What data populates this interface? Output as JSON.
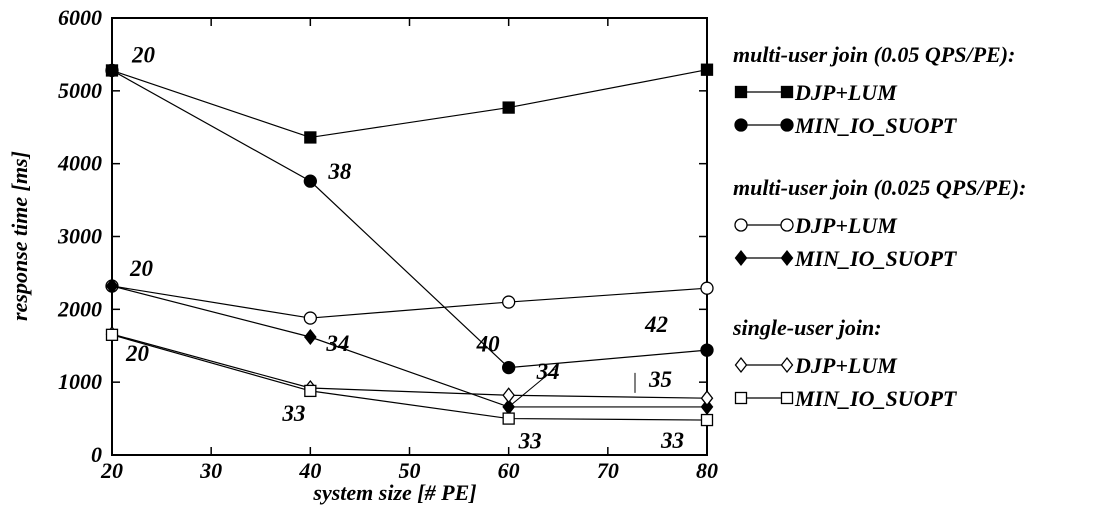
{
  "chart_data": {
    "type": "line",
    "xlabel": "system size [# PE]",
    "ylabel": "response time [ms]",
    "xlim": [
      20,
      80
    ],
    "ylim": [
      0,
      6000
    ],
    "xticks": [
      "20",
      "30",
      "40",
      "50",
      "60",
      "70",
      "80"
    ],
    "yticks": [
      "0",
      "1000",
      "2000",
      "3000",
      "4000",
      "5000",
      "6000"
    ],
    "grid": false,
    "legend_position": "right",
    "legend_groups": [
      {
        "title": "multi-user join (0.05 QPS/PE):",
        "series": [
          0,
          1
        ]
      },
      {
        "title": "multi-user join (0.025 QPS/PE):",
        "series": [
          2,
          3
        ]
      },
      {
        "title": "single-user join:",
        "series": [
          4,
          5
        ]
      }
    ],
    "series": [
      {
        "name": "DJP+LUM",
        "marker": "filled-square",
        "x": [
          20,
          40,
          60,
          80
        ],
        "y": [
          5280,
          4360,
          4770,
          5290
        ]
      },
      {
        "name": "MIN_IO_SUOPT",
        "marker": "filled-circle",
        "x": [
          20,
          40,
          60,
          80
        ],
        "y": [
          5280,
          3760,
          1200,
          1440
        ]
      },
      {
        "name": "DJP+LUM",
        "marker": "open-circle",
        "x": [
          20,
          40,
          60,
          80
        ],
        "y": [
          2320,
          1880,
          2100,
          2290
        ]
      },
      {
        "name": "MIN_IO_SUOPT",
        "marker": "filled-diamond",
        "x": [
          20,
          40,
          60,
          80
        ],
        "y": [
          2320,
          1620,
          660,
          660
        ]
      },
      {
        "name": "DJP+LUM",
        "marker": "open-diamond",
        "x": [
          20,
          40,
          60,
          80
        ],
        "y": [
          1660,
          920,
          820,
          780
        ]
      },
      {
        "name": "MIN_IO_SUOPT",
        "marker": "open-square",
        "x": [
          20,
          40,
          60,
          80
        ],
        "y": [
          1650,
          880,
          500,
          480
        ]
      }
    ],
    "annotations": [
      {
        "text": "20",
        "x": 20,
        "y": 5280
      },
      {
        "text": "38",
        "x": 40,
        "y": 3760
      },
      {
        "text": "20",
        "x": 20,
        "y": 2320
      },
      {
        "text": "34",
        "x": 40,
        "y": 1620
      },
      {
        "text": "20",
        "x": 20,
        "y": 1650
      },
      {
        "text": "33",
        "x": 40,
        "y": 880
      },
      {
        "text": "40",
        "x": 60,
        "y": 1200
      },
      {
        "text": "34",
        "x": 60,
        "y": 660
      },
      {
        "text": "33",
        "x": 60,
        "y": 500
      },
      {
        "text": "42",
        "x": 80,
        "y": 1440
      },
      {
        "text": "35",
        "x": 80,
        "y": 660
      },
      {
        "text": "33",
        "x": 80,
        "y": 480
      }
    ]
  }
}
